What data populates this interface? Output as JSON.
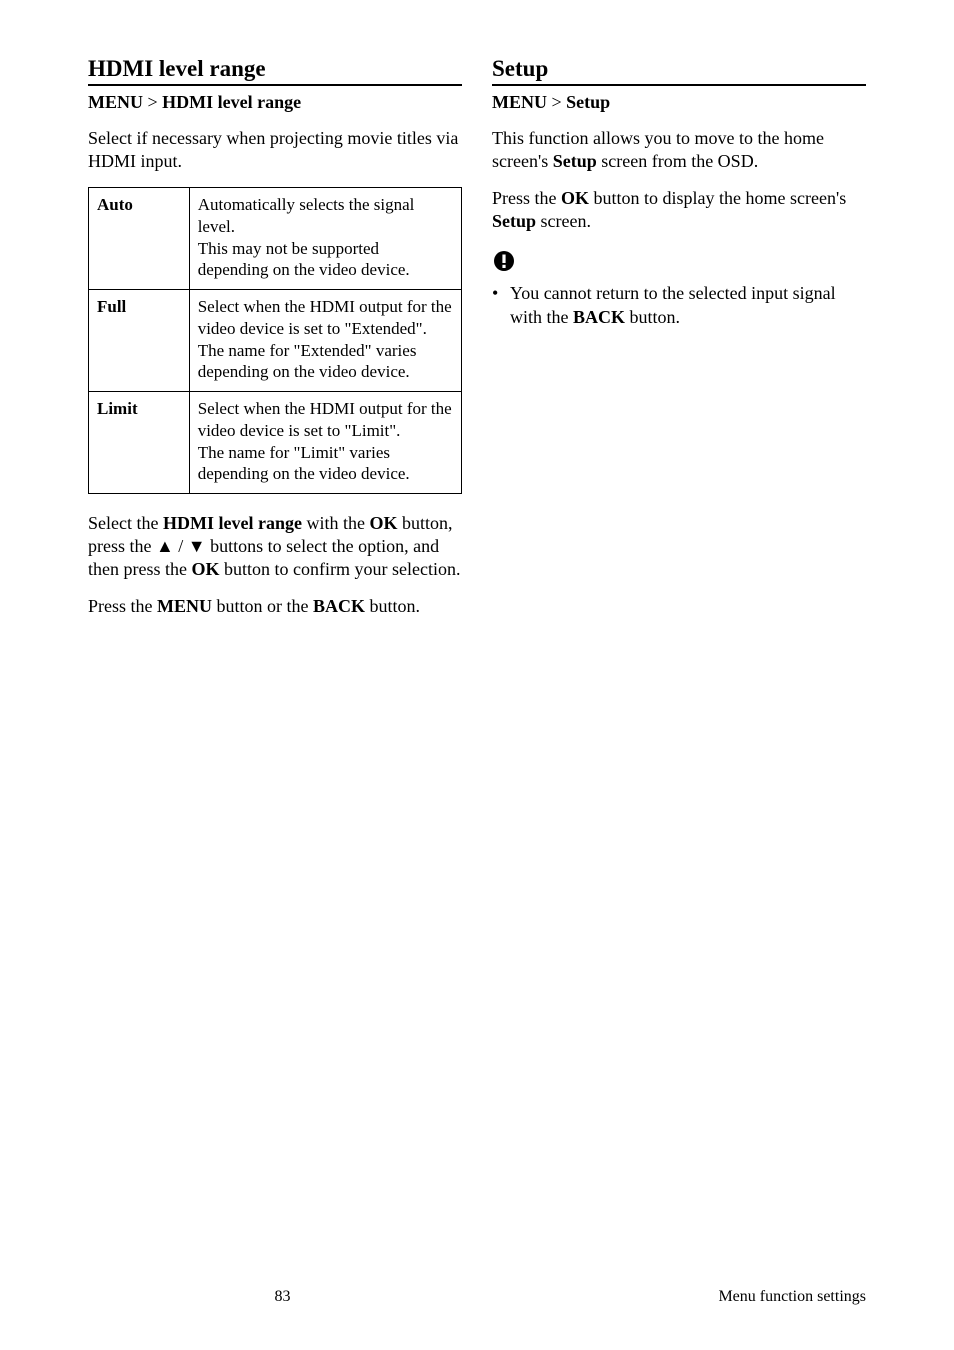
{
  "left": {
    "title": "HDMI level range",
    "breadcrumb_prefix": "MENU",
    "breadcrumb_sep": " > ",
    "breadcrumb_item": "HDMI level range",
    "intro": "Select if necessary when projecting movie titles via HDMI input.",
    "options": [
      {
        "key": "Auto",
        "desc": "Automatically selects the signal level.\nThis may not be supported depending on the video device."
      },
      {
        "key": "Full",
        "desc": "Select when the HDMI output for the video device is set to \"Extended\".\nThe name for \"Extended\" varies depending on the video device."
      },
      {
        "key": "Limit",
        "desc": "Select when the HDMI output for the video device is set to \"Limit\".\nThe name for \"Limit\" varies depending on the video device."
      }
    ],
    "post1_a": "Select the ",
    "post1_b": "HDMI level range",
    "post1_c": " with the ",
    "post1_d": "OK",
    "post1_e": " button, press the ",
    "post1_arrows": "▲ / ▼",
    "post1_f": "  buttons to select the option, and then press the ",
    "post1_g": "OK",
    "post1_h": " button to confirm your selection.",
    "post2_a": "Press the ",
    "post2_b": "MENU",
    "post2_c": " button or the ",
    "post2_d": "BACK",
    "post2_e": " button."
  },
  "right": {
    "title": "Setup",
    "breadcrumb_prefix": "MENU",
    "breadcrumb_sep": " > ",
    "breadcrumb_item": "Setup",
    "p1_a": "This function allows you to move to the home screen's ",
    "p1_b": "Setup",
    "p1_c": " screen from the OSD.",
    "p2_a": "Press the ",
    "p2_b": "OK",
    "p2_c": " button to display the home screen's ",
    "p2_d": "Setup",
    "p2_e": " screen.",
    "note_a": "You cannot return to the selected input signal with the ",
    "note_b": "BACK",
    "note_c": " button."
  },
  "footer": {
    "page": "83",
    "label": "Menu function settings"
  }
}
